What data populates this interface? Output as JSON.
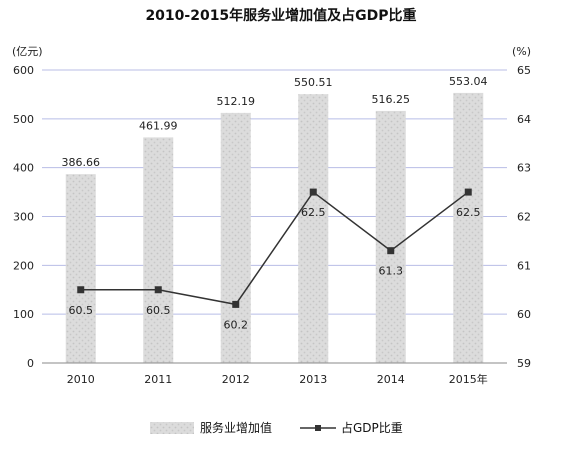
{
  "chart_data": {
    "type": "bar+line",
    "title": "2010-2015年服务业增加值及占GDP比重",
    "categories": [
      "2010",
      "2011",
      "2012",
      "2013",
      "2014",
      "2015年"
    ],
    "y_left": {
      "unit_label": "(亿元)",
      "range": [
        0,
        600
      ],
      "ticks": [
        0,
        100,
        200,
        300,
        400,
        500,
        600
      ]
    },
    "y_right": {
      "unit_label": "(%)",
      "range": [
        59,
        65
      ],
      "ticks": [
        59,
        60,
        61,
        62,
        63,
        64,
        65
      ]
    },
    "grid": true,
    "legend_position": "bottom",
    "series": [
      {
        "name": "服务业增加值",
        "type": "bar",
        "axis": "left",
        "values": [
          386.66,
          461.99,
          512.19,
          550.51,
          516.25,
          553.04
        ],
        "labels": [
          "386.66",
          "461.99",
          "512.19",
          "550.51",
          "516.25",
          "553.04"
        ],
        "color": "#d8d8d8",
        "pattern_color": "#c4c4c4"
      },
      {
        "name": "占GDP比重",
        "type": "line",
        "axis": "right",
        "values": [
          60.5,
          60.5,
          60.2,
          62.5,
          61.3,
          62.5
        ],
        "labels": [
          "60.5",
          "60.5",
          "60.2",
          "62.5",
          "61.3",
          "62.5"
        ],
        "color": "#333333"
      }
    ]
  }
}
